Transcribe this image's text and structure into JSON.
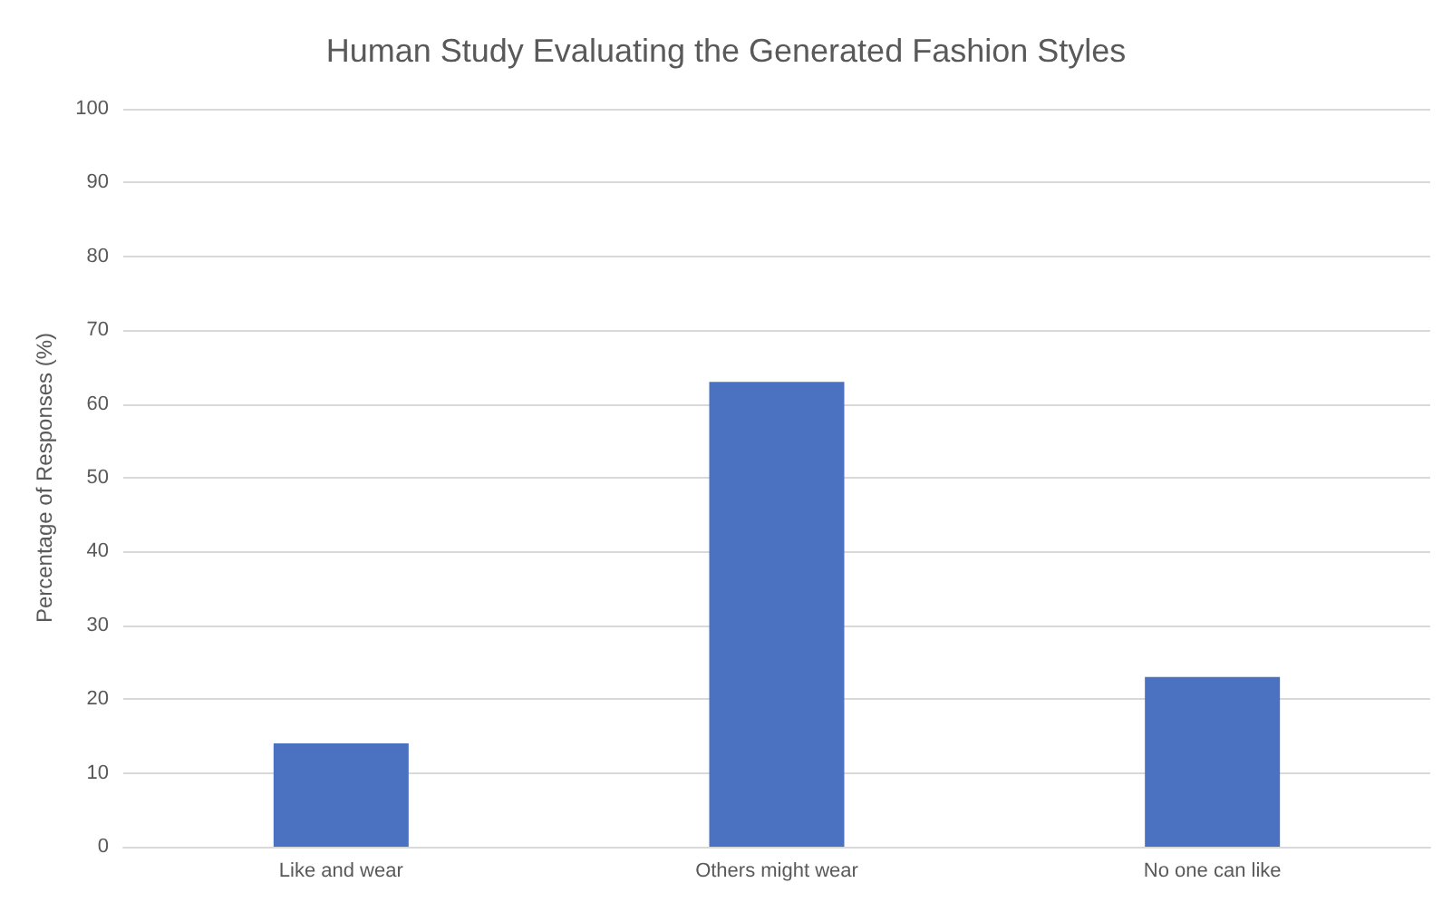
{
  "chart_data": {
    "type": "bar",
    "title": "Human Study Evaluating the Generated Fashion Styles",
    "ylabel": "Percentage of Responses (%)",
    "categories": [
      "Like and wear",
      "Others might wear",
      "No one can like"
    ],
    "values": [
      14,
      63,
      23
    ],
    "color": "#4a72c0",
    "ylim": [
      0,
      100
    ],
    "yticks": [
      0,
      10,
      20,
      30,
      40,
      50,
      60,
      70,
      80,
      90,
      100
    ],
    "grid": "y"
  }
}
